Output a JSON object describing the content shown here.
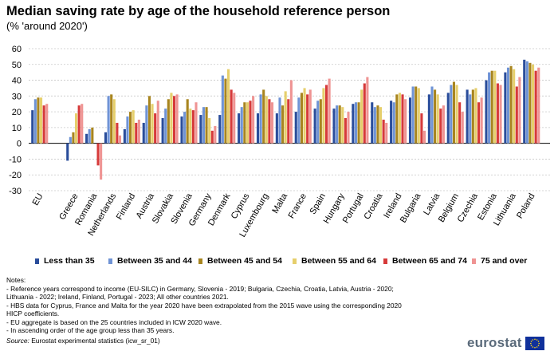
{
  "chart_data": {
    "type": "bar",
    "title": "Median saving rate by age of the household reference person",
    "subtitle": "(% 'around 2020')",
    "xlabel": "",
    "ylabel": "",
    "ylim": [
      -30,
      60
    ],
    "yticks": [
      60,
      50,
      40,
      30,
      20,
      10,
      0,
      -10,
      -20,
      -30
    ],
    "categories": [
      "EU",
      "Greece",
      "Romania",
      "Netherlands",
      "Finland",
      "Austria",
      "Slovakia",
      "Slovenia",
      "Germany",
      "Denmark",
      "Cyprus",
      "Luxembourg",
      "Malta",
      "France",
      "Spain",
      "Hungary",
      "Portugal",
      "Croatia",
      "Ireland",
      "Bulgaria",
      "Latvia",
      "Belgium",
      "Czechia",
      "Estonia",
      "Lithuania",
      "Poland"
    ],
    "series": [
      {
        "name": "Less than 35",
        "color": "#2a4d9b",
        "values": [
          21,
          -11,
          6,
          7,
          9,
          13,
          16,
          17,
          18,
          18,
          19,
          19,
          19,
          20,
          22,
          22,
          25,
          26,
          27,
          29,
          31,
          32,
          34,
          40,
          45,
          53
        ]
      },
      {
        "name": "Between 35 and 44",
        "color": "#6f93d5",
        "values": [
          28,
          4,
          9,
          30,
          17,
          24,
          22,
          20,
          23,
          43,
          23,
          31,
          29,
          29,
          27,
          24,
          26,
          23,
          26,
          36,
          36,
          37,
          31,
          45,
          48,
          52
        ]
      },
      {
        "name": "Between 45 and 54",
        "color": "#a8851f",
        "values": [
          29,
          7,
          10,
          31,
          20,
          30,
          28,
          28,
          23,
          41,
          26,
          34,
          24,
          32,
          28,
          24,
          26,
          24,
          31,
          36,
          34,
          39,
          34,
          46,
          49,
          51
        ]
      },
      {
        "name": "Between 55 and 64",
        "color": "#e6cf6c",
        "values": [
          29,
          19,
          0,
          28,
          21,
          25,
          32,
          22,
          16,
          47,
          26,
          30,
          33,
          35,
          35,
          23,
          34,
          23,
          32,
          35,
          31,
          37,
          35,
          46,
          47,
          50
        ]
      },
      {
        "name": "Between 65 and 74",
        "color": "#d63a3a",
        "values": [
          24,
          24,
          -14,
          13,
          13,
          19,
          30,
          21,
          8,
          34,
          27,
          28,
          28,
          31,
          37,
          16,
          38,
          15,
          31,
          19,
          22,
          26,
          26,
          38,
          36,
          46
        ]
      },
      {
        "name": "75 and over",
        "color": "#ef9493",
        "values": [
          25,
          25,
          -23,
          5,
          15,
          27,
          31,
          26,
          11,
          32,
          30,
          26,
          40,
          34,
          41,
          20,
          42,
          13,
          28,
          8,
          24,
          20,
          29,
          37,
          42,
          48
        ]
      }
    ]
  },
  "notes": {
    "heading": "Notes:",
    "lines": [
      "- Reference years correspond to income (EU-SILC) in Germany, Slovenia - 2019; Bulgaria, Czechia, Croatia, Latvia, Austria - 2020;",
      "Lithuania - 2022; Ireland, Finland, Portugal - 2023; All other countries 2021.",
      "- HBS data for Cyprus, France and Malta for the year 2020 have been extrapolated from the 2015 wave using the corresponding 2020",
      "HICP coefficients.",
      "- EU aggregate is based on the 25 countries included in ICW 2020 wave.",
      "- In ascending order of the age group less than 35 years."
    ]
  },
  "source": {
    "label": "Source:",
    "text": " Eurostat experimental statistics (icw_sr_01)"
  },
  "logo": {
    "text": "eurostat",
    "flag_color": "#10319b",
    "star_color": "#ffd617"
  }
}
